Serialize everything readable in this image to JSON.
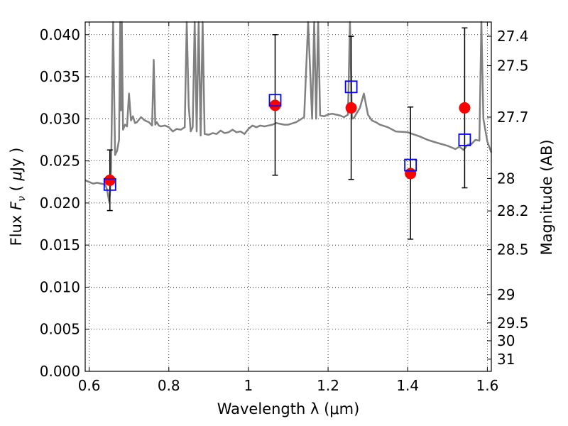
{
  "chart_data": {
    "type": "scatter",
    "xlabel": "Wavelength  λ (μm)",
    "ylabel": "Flux  F_ν  ( μJy )",
    "ylabel_parts": {
      "pre": "Flux  ",
      "var": "F",
      "sub": "ν",
      "mid": "  ( ",
      "mu": "μ",
      "post": "Jy )"
    },
    "y2label": "Magnitude (AB)",
    "xlim": [
      0.59,
      1.61
    ],
    "ylim": [
      0.0,
      0.0415
    ],
    "grid": true,
    "x_ticks": [
      0.6,
      0.8,
      1.0,
      1.2,
      1.4,
      1.6
    ],
    "x_tick_labels": [
      "0.6",
      "0.8",
      "1",
      "1.2",
      "1.4",
      "1.6"
    ],
    "y_ticks": [
      0.0,
      0.005,
      0.01,
      0.015,
      0.02,
      0.025,
      0.03,
      0.035,
      0.04
    ],
    "y_tick_labels": [
      "0.000",
      "0.005",
      "0.010",
      "0.015",
      "0.020",
      "0.025",
      "0.030",
      "0.035",
      "0.040"
    ],
    "y2_ticks": [
      27.4,
      27.5,
      27.7,
      28,
      28.2,
      28.5,
      29,
      29.5,
      30,
      31
    ],
    "y2_tick_labels": [
      "27.4",
      "27.5",
      "27.7",
      "28",
      "28.2",
      "28.5",
      "29",
      "29.5",
      "30",
      "31"
    ],
    "series": [
      {
        "kind": "line",
        "color": "#808080",
        "x": [
          0.59,
          0.6,
          0.61,
          0.62,
          0.63,
          0.64,
          0.645,
          0.65,
          0.652,
          0.655,
          0.66,
          0.665,
          0.67,
          0.675,
          0.678,
          0.68,
          0.682,
          0.685,
          0.69,
          0.695,
          0.7,
          0.705,
          0.71,
          0.715,
          0.72,
          0.73,
          0.74,
          0.75,
          0.758,
          0.762,
          0.766,
          0.77,
          0.775,
          0.78,
          0.79,
          0.8,
          0.81,
          0.82,
          0.83,
          0.84,
          0.845,
          0.85,
          0.855,
          0.86,
          0.865,
          0.87,
          0.875,
          0.88,
          0.885,
          0.89,
          0.9,
          0.91,
          0.92,
          0.93,
          0.94,
          0.95,
          0.96,
          0.97,
          0.98,
          0.99,
          1.0,
          1.01,
          1.02,
          1.03,
          1.04,
          1.05,
          1.06,
          1.07,
          1.08,
          1.09,
          1.1,
          1.12,
          1.14,
          1.15,
          1.16,
          1.165,
          1.17,
          1.175,
          1.18,
          1.19,
          1.2,
          1.21,
          1.22,
          1.23,
          1.24,
          1.25,
          1.255,
          1.26,
          1.265,
          1.27,
          1.28,
          1.29,
          1.3,
          1.31,
          1.32,
          1.33,
          1.35,
          1.37,
          1.4,
          1.43,
          1.45,
          1.47,
          1.5,
          1.52,
          1.53,
          1.54,
          1.55,
          1.56,
          1.57,
          1.58,
          1.585,
          1.59,
          1.6,
          1.61
        ],
        "y": [
          0.0227,
          0.0225,
          0.0223,
          0.0224,
          0.0223,
          0.0222,
          0.0216,
          0.0202,
          0.021,
          0.024,
          0.0415,
          0.0257,
          0.0262,
          0.0275,
          0.0415,
          0.031,
          0.0415,
          0.0287,
          0.0293,
          0.0291,
          0.033,
          0.0298,
          0.0303,
          0.0295,
          0.0296,
          0.0302,
          0.0298,
          0.0296,
          0.0292,
          0.037,
          0.0293,
          0.0296,
          0.0292,
          0.0291,
          0.0292,
          0.029,
          0.0285,
          0.0288,
          0.0287,
          0.029,
          0.0415,
          0.0315,
          0.0285,
          0.029,
          0.0415,
          0.0285,
          0.0415,
          0.028,
          0.0415,
          0.0282,
          0.0281,
          0.0283,
          0.0282,
          0.0286,
          0.0283,
          0.0284,
          0.0287,
          0.0284,
          0.0285,
          0.0282,
          0.0288,
          0.0292,
          0.029,
          0.0292,
          0.0291,
          0.0292,
          0.0293,
          0.0295,
          0.0294,
          0.0293,
          0.0293,
          0.0296,
          0.0302,
          0.0415,
          0.03,
          0.0415,
          0.03,
          0.0415,
          0.0304,
          0.0303,
          0.0305,
          0.0306,
          0.0305,
          0.0304,
          0.0302,
          0.0305,
          0.0415,
          0.03,
          0.0301,
          0.0305,
          0.0313,
          0.033,
          0.0305,
          0.0298,
          0.0296,
          0.0293,
          0.029,
          0.0285,
          0.0284,
          0.0279,
          0.0275,
          0.0272,
          0.0268,
          0.0264,
          0.0267,
          0.0263,
          0.0269,
          0.027,
          0.0275,
          0.0274,
          0.0415,
          0.03,
          0.0273,
          0.026
        ]
      },
      {
        "kind": "errorbar",
        "color": "#000000",
        "x": [
          0.652,
          1.067,
          1.258,
          1.407,
          1.543
        ],
        "y": [
          0.0227,
          0.0316,
          0.0313,
          0.0235,
          0.0313
        ],
        "yerr_low": [
          0.0036,
          0.0083,
          0.0085,
          0.0078,
          0.0095
        ],
        "yerr_high": [
          0.0036,
          0.0084,
          0.0085,
          0.0079,
          0.0095
        ]
      },
      {
        "kind": "scatter",
        "marker": "circle",
        "color": "#ff0000",
        "x": [
          0.652,
          1.067,
          1.258,
          1.407,
          1.543
        ],
        "y": [
          0.0227,
          0.0316,
          0.0313,
          0.0235,
          0.0313
        ]
      },
      {
        "kind": "scatter",
        "marker": "open-square",
        "color": "#0000ff",
        "x": [
          0.652,
          1.067,
          1.258,
          1.407,
          1.543
        ],
        "y": [
          0.0222,
          0.0322,
          0.0338,
          0.0245,
          0.0275
        ]
      }
    ]
  }
}
